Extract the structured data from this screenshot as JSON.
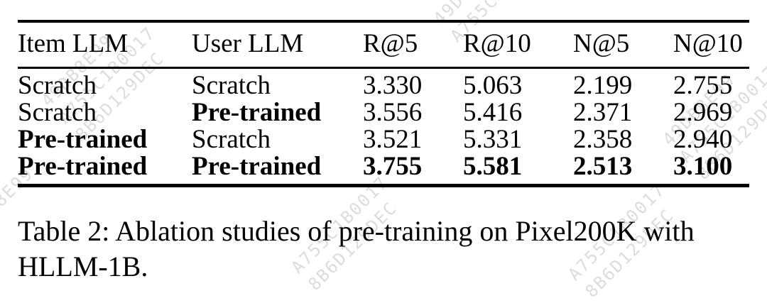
{
  "table": {
    "headers": {
      "item_llm": "Item LLM",
      "user_llm": "User LLM",
      "r5": "R@5",
      "r10": "R@10",
      "n5": "N@5",
      "n10": "N@10"
    },
    "rows": [
      {
        "item_llm": "Scratch",
        "user_llm": "Scratch",
        "r5": "3.330",
        "r10": "5.063",
        "n5": "2.199",
        "n10": "2.755"
      },
      {
        "item_llm": "Scratch",
        "user_llm": "Pre-trained",
        "r5": "3.556",
        "r10": "5.416",
        "n5": "2.371",
        "n10": "2.969"
      },
      {
        "item_llm": "Pre-trained",
        "user_llm": "Scratch",
        "r5": "3.521",
        "r10": "5.331",
        "n5": "2.358",
        "n10": "2.940"
      },
      {
        "item_llm": "Pre-trained",
        "user_llm": "Pre-trained",
        "r5": "3.755",
        "r10": "5.581",
        "n5": "2.513",
        "n10": "3.100"
      }
    ]
  },
  "caption": {
    "lines": [
      "Table 2: Ablation studies of pre-training on Pixel200K with",
      "HLLM-1B."
    ]
  },
  "watermark": {
    "lines": [
      "49DB8E99",
      "A755C1B0017",
      "8B6D129DEC"
    ]
  },
  "colors": {
    "text": "#000000",
    "background": "#ffffff",
    "rule": "#000000",
    "watermark": "#dcdcdc"
  }
}
